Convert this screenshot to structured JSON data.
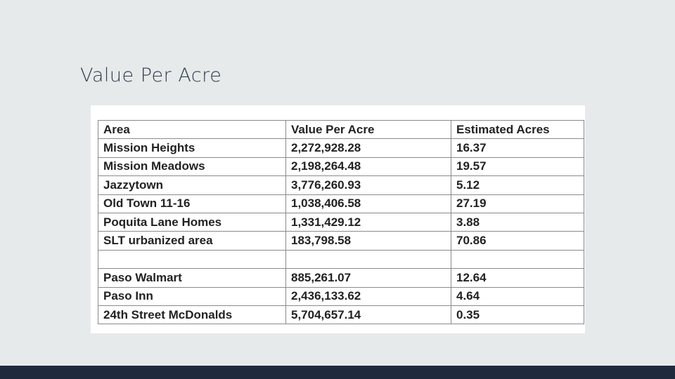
{
  "slide": {
    "title": "Value Per Acre"
  },
  "table": {
    "headers": [
      "Area",
      "Value Per Acre",
      "Estimated Acres"
    ],
    "rows": [
      [
        "Mission Heights",
        "2,272,928.28",
        "16.37"
      ],
      [
        "Mission Meadows",
        "2,198,264.48",
        "19.57"
      ],
      [
        "Jazzytown",
        "3,776,260.93",
        "5.12"
      ],
      [
        "Old Town 11-16",
        "1,038,406.58",
        "27.19"
      ],
      [
        "Poquita Lane Homes",
        "1,331,429.12",
        "3.88"
      ],
      [
        "SLT urbanized area",
        "183,798.58",
        "70.86"
      ],
      [
        "",
        "",
        ""
      ],
      [
        "Paso Walmart",
        "885,261.07",
        "12.64"
      ],
      [
        "Paso Inn",
        "2,436,133.62",
        "4.64"
      ],
      [
        "24th Street McDonalds",
        "5,704,657.14",
        "0.35"
      ]
    ]
  }
}
